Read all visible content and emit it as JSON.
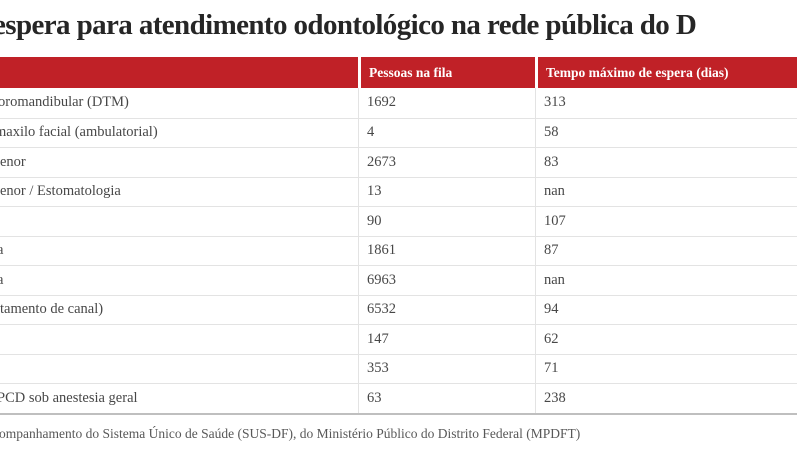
{
  "title": "espera para atendimento odontológico na rede pública do D",
  "colors": {
    "header_background": "#c02127",
    "header_text": "#ffffff",
    "row_divider": "#e3e3e3",
    "table_bottom_border": "#bfbfbf",
    "title_text": "#262626",
    "body_text": "#474747",
    "source_text": "#585858"
  },
  "chart_data": {
    "type": "table",
    "title": "espera para atendimento odontológico na rede pública do D",
    "columns": [
      "",
      "Pessoas na fila",
      "Tempo máximo de espera (dias)"
    ],
    "rows": [
      {
        "label": "oromandibular (DTM)",
        "pessoas": "1692",
        "tempo": "313"
      },
      {
        "label": "maxilo facial (ambulatorial)",
        "pessoas": "4",
        "tempo": "58"
      },
      {
        "label": "enor",
        "pessoas": "2673",
        "tempo": "83"
      },
      {
        "label": "enor / Estomatologia",
        "pessoas": "13",
        "tempo": "nan"
      },
      {
        "label": "",
        "pessoas": "90",
        "tempo": "107"
      },
      {
        "label": "a",
        "pessoas": "1861",
        "tempo": "87"
      },
      {
        "label": "a",
        "pessoas": "6963",
        "tempo": "nan"
      },
      {
        "label": "tamento de canal)",
        "pessoas": "6532",
        "tempo": "94"
      },
      {
        "label": "",
        "pessoas": "147",
        "tempo": "62"
      },
      {
        "label": "",
        "pessoas": "353",
        "tempo": "71"
      },
      {
        "label": "PCD sob anestesia geral",
        "pessoas": "63",
        "tempo": "238"
      }
    ],
    "source": "ompanhamento do Sistema Único de Saúde (SUS-DF), do Ministério Público do Distrito Federal (MPDFT)"
  }
}
